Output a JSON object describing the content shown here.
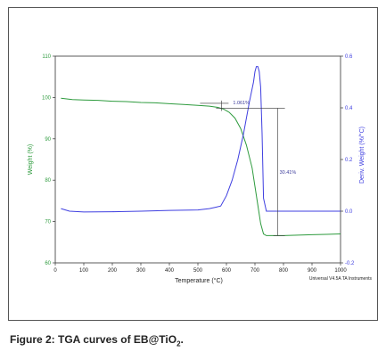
{
  "chart_data": {
    "type": "line",
    "xlabel": "Temperature (°C)",
    "ylabel": "Weight (%)",
    "y2label": "Deriv. Weight (%/°C)",
    "xlim": [
      0,
      1000
    ],
    "ylim": [
      60,
      110
    ],
    "y2lim": [
      -0.2,
      0.6
    ],
    "xticks": [
      0,
      100,
      200,
      300,
      400,
      500,
      600,
      700,
      800,
      900,
      1000
    ],
    "yticks": [
      60,
      70,
      80,
      90,
      100,
      110
    ],
    "y2ticks": [
      -0.2,
      0.0,
      0.2,
      0.4,
      0.6
    ],
    "y2tick_labels": [
      "-0.2",
      "0.0",
      "0.2",
      "0.4",
      "0.6"
    ],
    "instrument_note": "Universal V4.5A TA Instruments",
    "grid": false,
    "series": [
      {
        "color": "#2e9b3e",
        "axis": "left",
        "x": [
          20,
          60,
          100,
          150,
          200,
          250,
          300,
          350,
          400,
          450,
          500,
          540,
          570,
          590,
          610,
          630,
          650,
          670,
          690,
          700,
          710,
          720,
          730,
          740,
          760,
          800,
          850,
          900,
          950,
          1000
        ],
        "y": [
          99.8,
          99.5,
          99.4,
          99.3,
          99.1,
          99.0,
          98.8,
          98.7,
          98.5,
          98.3,
          98.1,
          97.9,
          97.6,
          97.2,
          96.4,
          95.0,
          92.5,
          88.5,
          83.0,
          78.5,
          74.0,
          69.5,
          67.0,
          66.6,
          66.6,
          66.6,
          66.7,
          66.8,
          66.9,
          67.0
        ]
      },
      {
        "color": "#3f3fe0",
        "axis": "right",
        "x": [
          20,
          50,
          100,
          200,
          300,
          400,
          500,
          540,
          560,
          580,
          600,
          620,
          640,
          660,
          680,
          695,
          700,
          705,
          710,
          715,
          720,
          725,
          730,
          740,
          760,
          800,
          850,
          900,
          950,
          1000
        ],
        "y": [
          0.01,
          0.0,
          -0.003,
          -0.002,
          0.0,
          0.003,
          0.005,
          0.01,
          0.015,
          0.02,
          0.06,
          0.12,
          0.2,
          0.3,
          0.42,
          0.5,
          0.54,
          0.56,
          0.56,
          0.54,
          0.48,
          0.3,
          0.05,
          0.0,
          0.0,
          0.0,
          0.0,
          0.0,
          0.0,
          0.0
        ]
      }
    ],
    "annotations": [
      {
        "text": "1.061%",
        "x": 520,
        "y1": 98.6,
        "y2": 97.4
      },
      {
        "text": "30.41%",
        "x": 780,
        "y1": 97.4,
        "y2": 66.6
      }
    ]
  },
  "caption": {
    "main": "Figure 2: TGA curves of EB@TiO",
    "sub": "2",
    "tail": "."
  }
}
